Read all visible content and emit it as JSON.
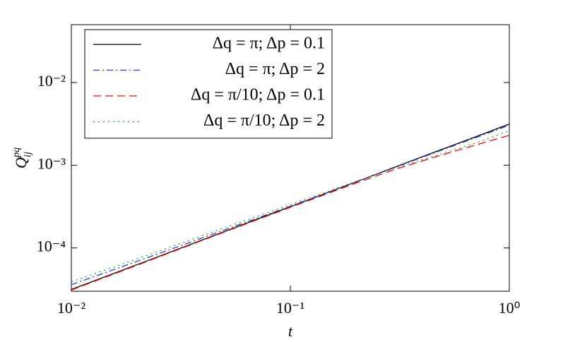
{
  "chart_data": {
    "type": "line",
    "xlabel": "t",
    "ylabel": {
      "main": "Q",
      "sup": "pq",
      "sub": "ij"
    },
    "x": [
      0.01,
      0.02,
      0.05,
      0.1,
      0.2,
      0.3,
      0.5,
      0.7,
      1
    ],
    "xlog": true,
    "ylog": true,
    "xlim": [
      0.01,
      1
    ],
    "ylim": [
      3e-05,
      0.05
    ],
    "xticks": [
      {
        "value": 0.01,
        "label": "10⁻²"
      },
      {
        "value": 0.1,
        "label": "10⁻¹"
      },
      {
        "value": 1,
        "label": "10⁰"
      }
    ],
    "yticks": [
      {
        "value": 0.0001,
        "label": "10⁻⁴"
      },
      {
        "value": 0.001,
        "label": "10⁻³"
      },
      {
        "value": 0.01,
        "label": "10⁻²"
      }
    ],
    "legend": "upper left",
    "series": [
      {
        "name": "Δq = π; Δp = 0.1",
        "color": "#000000",
        "style": "solid",
        "values": [
          3.15e-05,
          6.3e-05,
          0.000158,
          0.000315,
          0.00063,
          0.00095,
          0.00158,
          0.0022,
          0.00315
        ]
      },
      {
        "name": "Δq = π; Δp = 2",
        "color": "#2040d0",
        "style": "dashdot",
        "values": [
          3.6e-05,
          6.9e-05,
          0.000165,
          0.00032,
          0.00063,
          0.00094,
          0.00155,
          0.00215,
          0.00305
        ]
      },
      {
        "name": "Δq = π/10; Δp = 0.1",
        "color": "#ff0000",
        "style": "dashed",
        "values": [
          3.1e-05,
          6.2e-05,
          0.000156,
          0.00031,
          0.00061,
          0.00089,
          0.00135,
          0.00175,
          0.0023
        ]
      },
      {
        "name": "Δq = π/10; Δp = 2",
        "color": "#22aa22",
        "style": "dotted",
        "values": [
          3.9e-05,
          7.4e-05,
          0.000175,
          0.000335,
          0.00064,
          0.00092,
          0.0014,
          0.00185,
          0.0026
        ]
      }
    ]
  }
}
